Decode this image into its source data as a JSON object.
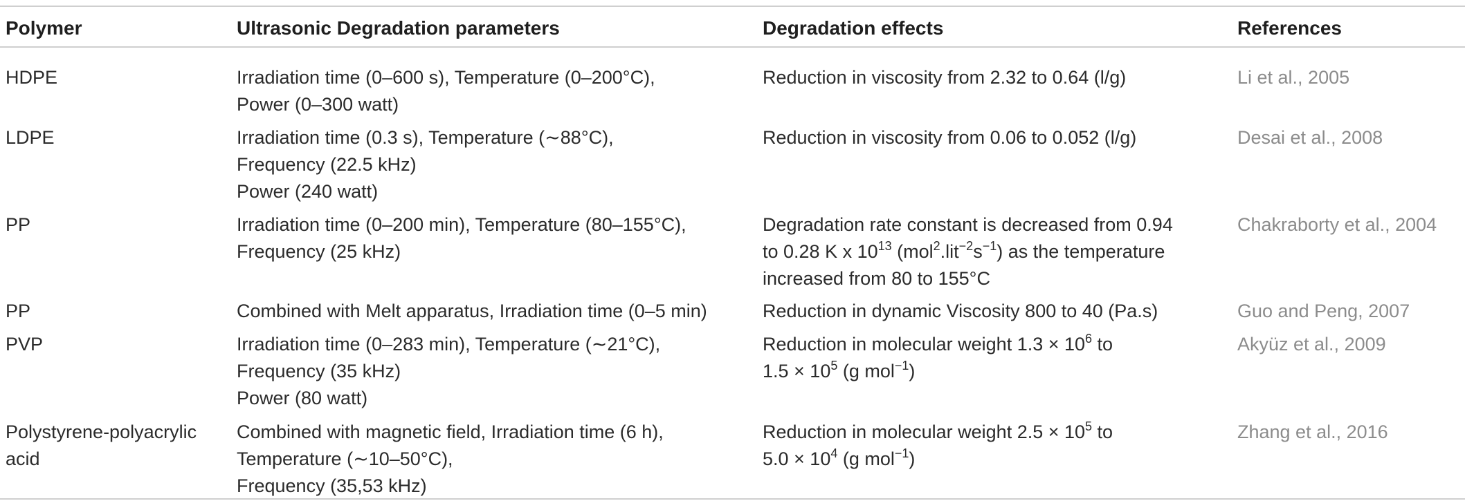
{
  "headers": {
    "polymer": "Polymer",
    "parameters": "Ultrasonic Degradation parameters",
    "effects": "Degradation effects",
    "references": "References"
  },
  "rows": [
    {
      "polymer": [
        "HDPE"
      ],
      "parameters": [
        "Irradiation time (0–600 s), Temperature (0–200°C),",
        "Power (0–300 watt)"
      ],
      "effects": [
        "Reduction in viscosity from 2.32 to 0.64 (l/g)"
      ],
      "reference": "Li et al., 2005"
    },
    {
      "polymer": [
        "LDPE"
      ],
      "parameters": [
        "Irradiation time (0.3 s), Temperature (∼88°C),",
        "Frequency (22.5 kHz)",
        "Power (240 watt)"
      ],
      "effects": [
        "Reduction in viscosity from 0.06 to 0.052 (l/g)"
      ],
      "reference": "Desai et al., 2008"
    },
    {
      "polymer": [
        "PP"
      ],
      "parameters": [
        "Irradiation time (0–200 min), Temperature (80–155°C),",
        "Frequency (25 kHz)"
      ],
      "effects": {
        "line1": "Degradation rate constant is decreased from 0.94",
        "line2_pre": "to 0.28 K x 10",
        "line2_sup1": "13",
        "line2_mid1": " (mol",
        "line2_sup2": "2",
        "line2_mid2": ".lit",
        "line2_sup3": "−2",
        "line2_mid3": "s",
        "line2_sup4": "−1",
        "line2_post": ") as the temperature",
        "line3": "increased from 80 to 155°C"
      },
      "reference": "Chakraborty et al., 2004"
    },
    {
      "polymer": [
        "PP"
      ],
      "parameters": [
        "Combined with Melt apparatus, Irradiation time (0–5 min)"
      ],
      "effects": [
        "Reduction in dynamic Viscosity 800 to 40 (Pa.s)"
      ],
      "reference": "Guo and Peng, 2007"
    },
    {
      "polymer": [
        "PVP"
      ],
      "parameters": [
        "Irradiation time (0–283 min), Temperature (∼21°C),",
        "Frequency (35 kHz)",
        "Power (80 watt)"
      ],
      "effects": {
        "line1_pre": "Reduction in molecular weight 1.3 × 10",
        "line1_sup": "6",
        "line1_post": " to",
        "line2_pre": "1.5 × 10",
        "line2_sup1": "5",
        "line2_mid": " (g mol",
        "line2_sup2": "−1",
        "line2_post": ")"
      },
      "reference": "Akyüz et al., 2009"
    },
    {
      "polymer": [
        "Polystyrene-polyacrylic",
        "acid"
      ],
      "parameters": [
        "Combined with magnetic field, Irradiation time (6 h),",
        "Temperature (∼10–50°C),",
        "Frequency (35,53 kHz)"
      ],
      "effects": {
        "line1_pre": "Reduction in molecular weight 2.5 × 10",
        "line1_sup": "5",
        "line1_post": " to",
        "line2_pre": "5.0 × 10",
        "line2_sup1": "4",
        "line2_mid": " (g mol",
        "line2_sup2": "−1",
        "line2_post": ")"
      },
      "reference": "Zhang et al., 2016"
    }
  ]
}
